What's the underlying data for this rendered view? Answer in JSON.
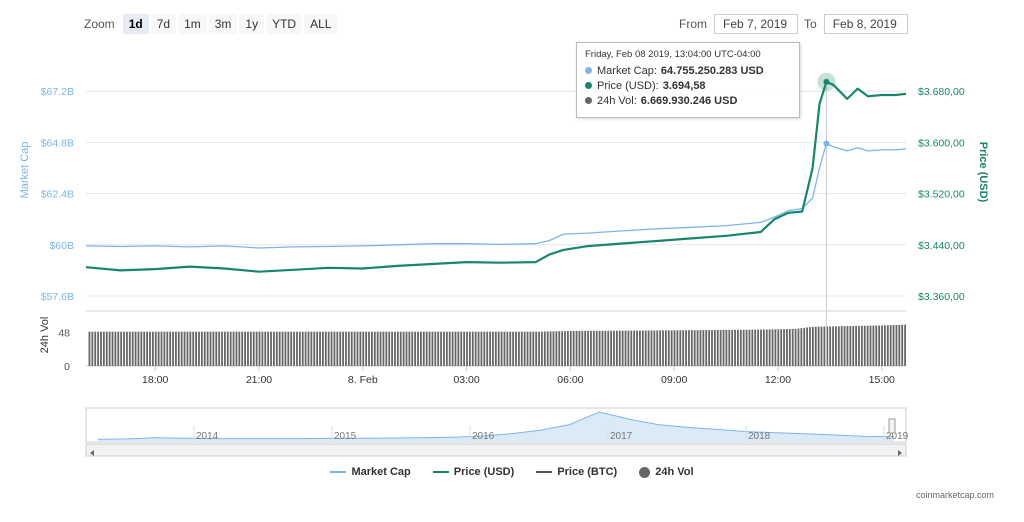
{
  "zoom": {
    "label": "Zoom",
    "buttons": [
      "1d",
      "7d",
      "1m",
      "3m",
      "1y",
      "YTD",
      "ALL"
    ],
    "active": "1d"
  },
  "range": {
    "from_label": "From",
    "from_value": "Feb 7, 2019",
    "to_label": "To",
    "to_value": "Feb 8, 2019"
  },
  "tooltip": {
    "date": "Friday, Feb 08 2019, 13:04:00 UTC-04:00",
    "rows": [
      {
        "label": "Market Cap:",
        "value": "64.755.250.283 USD",
        "color": "#7cb5ec"
      },
      {
        "label": "Price (USD):",
        "value": "3.694,58",
        "color": "#16876c"
      },
      {
        "label": "24h Vol:",
        "value": "6.669.930.246 USD",
        "color": "#666666"
      }
    ]
  },
  "legend": [
    {
      "label": "Market Cap",
      "color": "#7cb5ec",
      "kind": "line"
    },
    {
      "label": "Price (USD)",
      "color": "#16876c",
      "kind": "line"
    },
    {
      "label": "Price (BTC)",
      "color": "#555555",
      "kind": "line"
    },
    {
      "label": "24h Vol",
      "color": "#666666",
      "kind": "dot"
    }
  ],
  "credit": "coinmarketcap.com",
  "chart_data": {
    "type": "line",
    "x_unit": "hours",
    "x_range": [
      16.0,
      39.7
    ],
    "x_ticks": [
      {
        "x": 18,
        "label": "18:00"
      },
      {
        "x": 21,
        "label": "21:00"
      },
      {
        "x": 24,
        "label": "8. Feb"
      },
      {
        "x": 27,
        "label": "03:00"
      },
      {
        "x": 30,
        "label": "06:00"
      },
      {
        "x": 33,
        "label": "09:00"
      },
      {
        "x": 36,
        "label": "12:00"
      },
      {
        "x": 39,
        "label": "15:00"
      }
    ],
    "left_axis": {
      "title": "Market Cap",
      "range": [
        57.6,
        69.6
      ],
      "ticks": [
        {
          "v": 57.6,
          "label": "$57.6B"
        },
        {
          "v": 60.0,
          "label": "$60B"
        },
        {
          "v": 62.4,
          "label": "$62.4B"
        },
        {
          "v": 64.8,
          "label": "$64.8B"
        },
        {
          "v": 67.2,
          "label": "$67.2B"
        }
      ]
    },
    "right_axis": {
      "title": "Price (USD)",
      "range": [
        3360,
        3760
      ],
      "ticks": [
        {
          "v": 3360,
          "label": "$3.360,00"
        },
        {
          "v": 3440,
          "label": "$3.440,00"
        },
        {
          "v": 3520,
          "label": "$3.520,00"
        },
        {
          "v": 3600,
          "label": "$3.600,00"
        },
        {
          "v": 3680,
          "label": "$3.680,00"
        }
      ]
    },
    "volume_axis": {
      "title": "24h Vol",
      "range": [
        0,
        80
      ],
      "ticks": [
        {
          "v": 0,
          "label": "0"
        },
        {
          "v": 48,
          "label": "48"
        }
      ]
    },
    "series": [
      {
        "name": "Market Cap",
        "axis": "left",
        "color": "#7cb5ec",
        "points": [
          [
            16.0,
            59.95
          ],
          [
            17.0,
            59.92
          ],
          [
            18.0,
            59.95
          ],
          [
            19.0,
            59.9
          ],
          [
            20.0,
            59.95
          ],
          [
            21.0,
            59.85
          ],
          [
            22.0,
            59.9
          ],
          [
            23.0,
            59.92
          ],
          [
            24.0,
            59.95
          ],
          [
            25.0,
            60.0
          ],
          [
            26.0,
            60.05
          ],
          [
            27.0,
            60.05
          ],
          [
            28.0,
            60.02
          ],
          [
            29.0,
            60.05
          ],
          [
            29.4,
            60.2
          ],
          [
            29.8,
            60.5
          ],
          [
            30.5,
            60.55
          ],
          [
            31.5,
            60.65
          ],
          [
            32.5,
            60.75
          ],
          [
            33.5,
            60.82
          ],
          [
            34.5,
            60.9
          ],
          [
            35.5,
            61.05
          ],
          [
            35.9,
            61.3
          ],
          [
            36.3,
            61.6
          ],
          [
            36.7,
            61.7
          ],
          [
            37.0,
            62.2
          ],
          [
            37.2,
            63.6
          ],
          [
            37.4,
            64.75
          ],
          [
            37.6,
            64.6
          ],
          [
            38.0,
            64.4
          ],
          [
            38.3,
            64.55
          ],
          [
            38.6,
            64.4
          ],
          [
            39.0,
            64.45
          ],
          [
            39.4,
            64.45
          ],
          [
            39.7,
            64.5
          ]
        ]
      },
      {
        "name": "Price (USD)",
        "axis": "right",
        "color": "#16876c",
        "points": [
          [
            16.0,
            3405
          ],
          [
            17.0,
            3400
          ],
          [
            18.0,
            3402
          ],
          [
            19.0,
            3406
          ],
          [
            20.0,
            3403
          ],
          [
            21.0,
            3398
          ],
          [
            22.0,
            3401
          ],
          [
            23.0,
            3404
          ],
          [
            24.0,
            3403
          ],
          [
            25.0,
            3407
          ],
          [
            26.0,
            3410
          ],
          [
            27.0,
            3413
          ],
          [
            28.0,
            3412
          ],
          [
            29.0,
            3413
          ],
          [
            29.4,
            3425
          ],
          [
            29.8,
            3432
          ],
          [
            30.5,
            3438
          ],
          [
            31.5,
            3442
          ],
          [
            32.5,
            3446
          ],
          [
            33.5,
            3450
          ],
          [
            34.5,
            3454
          ],
          [
            35.5,
            3460
          ],
          [
            35.9,
            3480
          ],
          [
            36.3,
            3490
          ],
          [
            36.7,
            3492
          ],
          [
            37.0,
            3560
          ],
          [
            37.2,
            3660
          ],
          [
            37.4,
            3694.58
          ],
          [
            37.6,
            3690
          ],
          [
            38.0,
            3668
          ],
          [
            38.3,
            3684
          ],
          [
            38.6,
            3672
          ],
          [
            39.0,
            3674
          ],
          [
            39.4,
            3674
          ],
          [
            39.7,
            3676
          ]
        ]
      }
    ],
    "volume": {
      "name": "24h Vol",
      "color": "#666666",
      "points": [
        [
          16.0,
          49
        ],
        [
          24.0,
          49
        ],
        [
          29.0,
          49
        ],
        [
          30.0,
          50
        ],
        [
          33.0,
          51
        ],
        [
          35.5,
          52
        ],
        [
          36.5,
          53
        ],
        [
          37.0,
          56
        ],
        [
          38.0,
          57
        ],
        [
          39.0,
          58
        ],
        [
          39.7,
          59
        ]
      ]
    },
    "crosshair_x": 37.4,
    "navigator": {
      "labels": [
        "2014",
        "2015",
        "2016",
        "2017",
        "2018",
        "2019"
      ],
      "series": [
        0.03,
        0.04,
        0.08,
        0.06,
        0.05,
        0.05,
        0.05,
        0.05,
        0.06,
        0.06,
        0.07,
        0.08,
        0.1,
        0.14,
        0.22,
        0.35,
        0.55,
        1.0,
        0.75,
        0.55,
        0.45,
        0.38,
        0.3,
        0.26,
        0.22,
        0.18,
        0.13,
        0.12
      ]
    }
  }
}
